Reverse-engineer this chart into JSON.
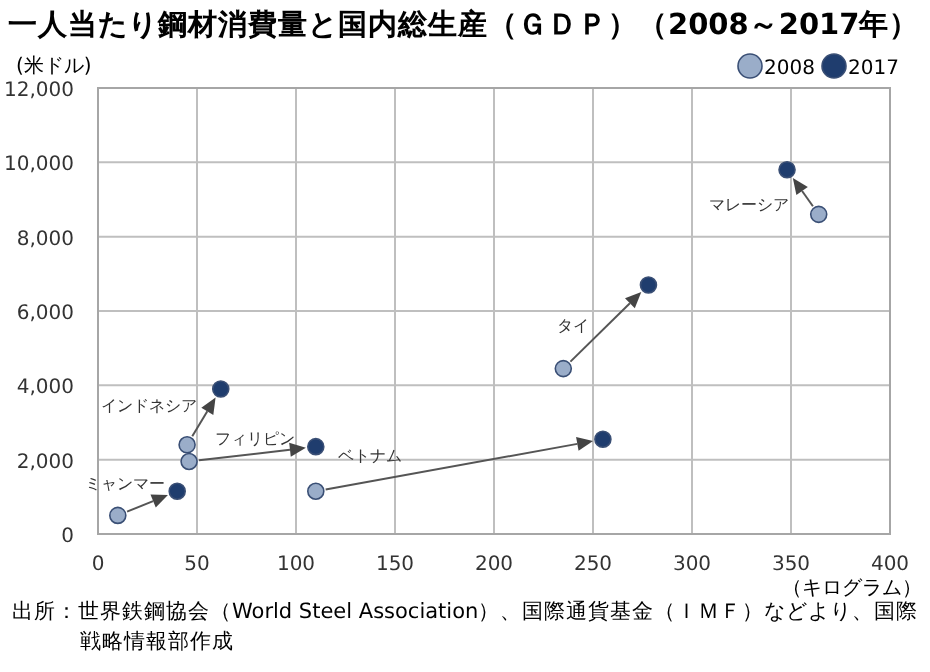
{
  "chart_data": {
    "type": "scatter",
    "title": "一人当たり鋼材消費量と国内総生産（ＧＤＰ）（2008～2017年）",
    "xlabel": "（キログラム）",
    "ylabel": "(米ドル)",
    "xlim": [
      0,
      400
    ],
    "xticks": [
      0,
      50,
      100,
      150,
      200,
      250,
      300,
      350,
      400
    ],
    "ylim": [
      0,
      12000
    ],
    "yticks": [
      {
        "value": 0,
        "label": "0"
      },
      {
        "value": 2000,
        "label": "2,000"
      },
      {
        "value": 4000,
        "label": "4,000"
      },
      {
        "value": 6000,
        "label": "6,000"
      },
      {
        "value": 8000,
        "label": "8,000"
      },
      {
        "value": 10000,
        "label": "10,000"
      },
      {
        "value": 12000,
        "label": "12,000"
      }
    ],
    "grid": true,
    "legend": "top right",
    "marker": "circle",
    "series": [
      {
        "name": "2008",
        "color": "#9aadc9",
        "x": [
          10,
          45,
          46,
          110,
          235,
          364
        ],
        "values": [
          500,
          2400,
          1950,
          1150,
          4450,
          8600
        ]
      },
      {
        "name": "2017",
        "color": "#1f3d6e",
        "x": [
          40,
          62,
          110,
          255,
          278,
          348
        ],
        "values": [
          1150,
          3900,
          2350,
          2550,
          6700,
          9800
        ]
      }
    ],
    "annotations": [
      {
        "text": "ミャンマー",
        "x": 40,
        "y": 1150
      },
      {
        "text": "インドネシア",
        "x": 45,
        "y": 2400
      },
      {
        "text": "フィリピン",
        "x": 46,
        "y": 1950
      },
      {
        "text": "ベトナム",
        "x": 110,
        "y": 1150
      },
      {
        "text": "タイ",
        "x": 235,
        "y": 4450
      },
      {
        "text": "マレーシア",
        "x": 348,
        "y": 9800
      },
      "出所：世界鉄鋼協会（World Steel Association）、国際通貨基金（ＩＭＦ）などより、国際戦略情報部作成"
    ]
  }
}
